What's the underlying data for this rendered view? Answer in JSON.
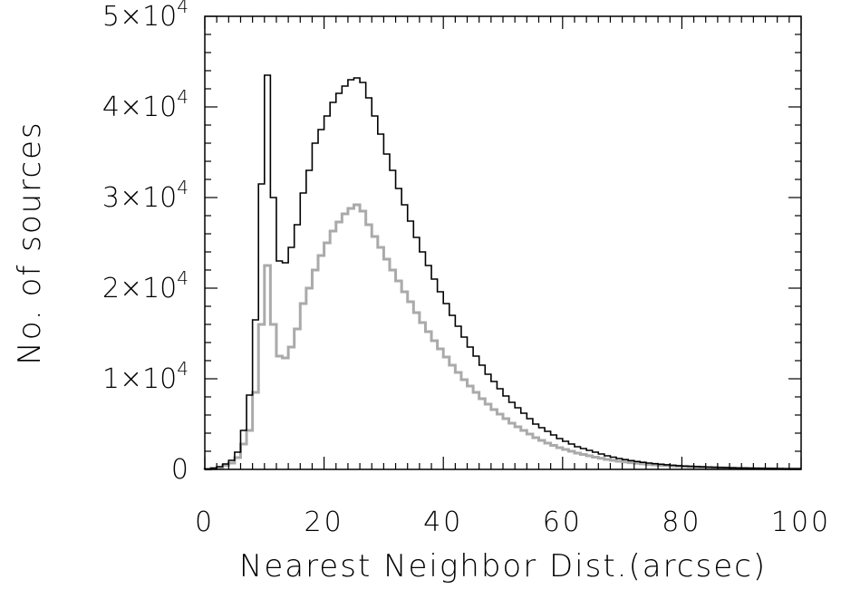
{
  "chart_data": {
    "type": "histogram",
    "title": "",
    "xlabel": "Nearest Neighbor Dist.(arcsec)",
    "ylabel": "No. of sources",
    "xlim": [
      0,
      100
    ],
    "ylim": [
      0,
      50000
    ],
    "grid": false,
    "legend": "none",
    "x_ticks": [
      0,
      20,
      40,
      60,
      80,
      100
    ],
    "y_ticks": [
      0,
      10000,
      20000,
      30000,
      40000,
      50000
    ],
    "x_tick_labels": [
      "0",
      "20",
      "40",
      "60",
      "80",
      "100"
    ],
    "y_tick_labels": [
      {
        "mantissa": "0",
        "exponent": ""
      },
      {
        "mantissa": "1×10",
        "exponent": "4"
      },
      {
        "mantissa": "2×10",
        "exponent": "4"
      },
      {
        "mantissa": "3×10",
        "exponent": "4"
      },
      {
        "mantissa": "4×10",
        "exponent": "4"
      },
      {
        "mantissa": "5×10",
        "exponent": "4"
      }
    ],
    "bin_width": 1,
    "x": [
      0,
      1,
      2,
      3,
      4,
      5,
      6,
      7,
      8,
      9,
      10,
      11,
      12,
      13,
      14,
      15,
      16,
      17,
      18,
      19,
      20,
      21,
      22,
      23,
      24,
      25,
      26,
      27,
      28,
      29,
      30,
      31,
      32,
      33,
      34,
      35,
      36,
      37,
      38,
      39,
      40,
      41,
      42,
      43,
      44,
      45,
      46,
      47,
      48,
      49,
      50,
      51,
      52,
      53,
      54,
      55,
      56,
      57,
      58,
      59,
      60,
      61,
      62,
      63,
      64,
      65,
      66,
      67,
      68,
      69,
      70,
      71,
      72,
      73,
      74,
      75,
      76,
      77,
      78,
      79,
      80,
      81,
      82,
      83,
      84,
      85,
      86,
      87,
      88,
      89,
      90,
      91,
      92,
      93,
      94,
      95,
      96,
      97,
      98,
      99
    ],
    "series": [
      {
        "color": "#000000",
        "values": [
          50,
          150,
          300,
          600,
          1000,
          1900,
          4300,
          8200,
          16500,
          31500,
          43500,
          30000,
          23000,
          22800,
          24500,
          27000,
          30500,
          33000,
          36000,
          37500,
          39000,
          40500,
          41500,
          42300,
          43000,
          43200,
          42700,
          41000,
          39000,
          37000,
          34800,
          33000,
          31000,
          29200,
          27400,
          25600,
          24000,
          22500,
          21000,
          19600,
          18300,
          17000,
          15800,
          14600,
          13500,
          12500,
          11500,
          10500,
          9700,
          8900,
          8100,
          7400,
          6800,
          6200,
          5600,
          5000,
          4600,
          4200,
          3800,
          3400,
          3100,
          2800,
          2500,
          2300,
          2100,
          1900,
          1700,
          1500,
          1350,
          1200,
          1080,
          970,
          870,
          780,
          700,
          630,
          570,
          510,
          460,
          410,
          370,
          340,
          310,
          280,
          250,
          230,
          210,
          190,
          170,
          150,
          140,
          130,
          120,
          110,
          100,
          90,
          80,
          75,
          70,
          65
        ]
      },
      {
        "color": "#aaaaaa",
        "values": [
          30,
          100,
          200,
          450,
          700,
          1300,
          2800,
          4300,
          8500,
          16000,
          22500,
          16000,
          12500,
          12300,
          13500,
          15500,
          18300,
          20000,
          22000,
          23600,
          25000,
          26300,
          27300,
          28200,
          28800,
          29200,
          28500,
          27000,
          25700,
          24500,
          23200,
          22000,
          20800,
          19600,
          18500,
          17300,
          16200,
          15200,
          14200,
          13300,
          12400,
          11500,
          10700,
          9900,
          9200,
          8500,
          7800,
          7200,
          6600,
          6100,
          5600,
          5100,
          4700,
          4300,
          3900,
          3500,
          3200,
          2900,
          2650,
          2400,
          2200,
          2000,
          1800,
          1650,
          1500,
          1350,
          1220,
          1100,
          1000,
          900,
          820,
          740,
          670,
          610,
          550,
          500,
          450,
          410,
          370,
          340,
          310,
          280,
          260,
          240,
          220,
          200,
          180,
          165,
          150,
          135,
          125,
          115,
          105,
          95,
          88,
          80,
          74,
          68,
          62,
          58
        ]
      }
    ]
  }
}
